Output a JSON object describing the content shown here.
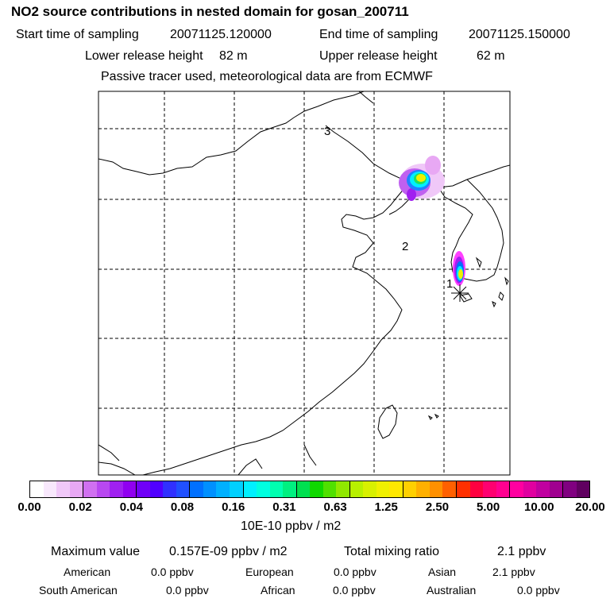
{
  "title": "NO2 source contributions in nested domain for gosan_200711",
  "sampling": {
    "start_label": "Start time of sampling",
    "start_value": "20071125.120000",
    "end_label": "End time of sampling",
    "end_value": "20071125.150000"
  },
  "release": {
    "lower_label": "Lower release height",
    "lower_value": "82 m",
    "upper_label": "Upper release height",
    "upper_value": "62 m"
  },
  "note": "Passive tracer used, meteorological data are from ECMWF",
  "map": {
    "point_labels": [
      "1",
      "2",
      "3"
    ],
    "receptor_marker": "asterisk"
  },
  "colorbar": {
    "tick_labels": [
      "0.00",
      "0.02",
      "0.04",
      "0.08",
      "0.16",
      "0.31",
      "0.63",
      "1.25",
      "2.50",
      "5.00",
      "10.00",
      "20.00"
    ],
    "unit": "10E-10 ppbv / m2",
    "colors": [
      "#ffffff",
      "#f8e8fc",
      "#f0c8f8",
      "#e8a8f4",
      "#d070f0",
      "#b848f0",
      "#a020f0",
      "#9000f0",
      "#7000f8",
      "#5000ff",
      "#3030ff",
      "#2050ff",
      "#0070ff",
      "#0090ff",
      "#00b0ff",
      "#00d0ff",
      "#00f0ff",
      "#00ffe0",
      "#00ffb0",
      "#00f080",
      "#00e050",
      "#10d800",
      "#50e000",
      "#90e800",
      "#b8f000",
      "#d8f000",
      "#f0f000",
      "#ffe800",
      "#ffd000",
      "#ffb000",
      "#ff9000",
      "#ff6000",
      "#ff3000",
      "#ff0040",
      "#ff0070",
      "#ff0090",
      "#ff00a0",
      "#e000a0",
      "#c000a0",
      "#a00090",
      "#800080",
      "#600060"
    ]
  },
  "summary": {
    "max_label": "Maximum value",
    "max_value": "0.157E-09 ppbv / m2",
    "total_label": "Total mixing ratio",
    "total_value": "2.1 ppbv"
  },
  "regions": [
    {
      "name": "American",
      "value": "0.0 ppbv"
    },
    {
      "name": "European",
      "value": "0.0 ppbv"
    },
    {
      "name": "Asian",
      "value": "2.1 ppbv"
    },
    {
      "name": "South American",
      "value": "0.0 ppbv"
    },
    {
      "name": "African",
      "value": "0.0 ppbv"
    },
    {
      "name": "Australian",
      "value": "0.0 ppbv"
    }
  ]
}
